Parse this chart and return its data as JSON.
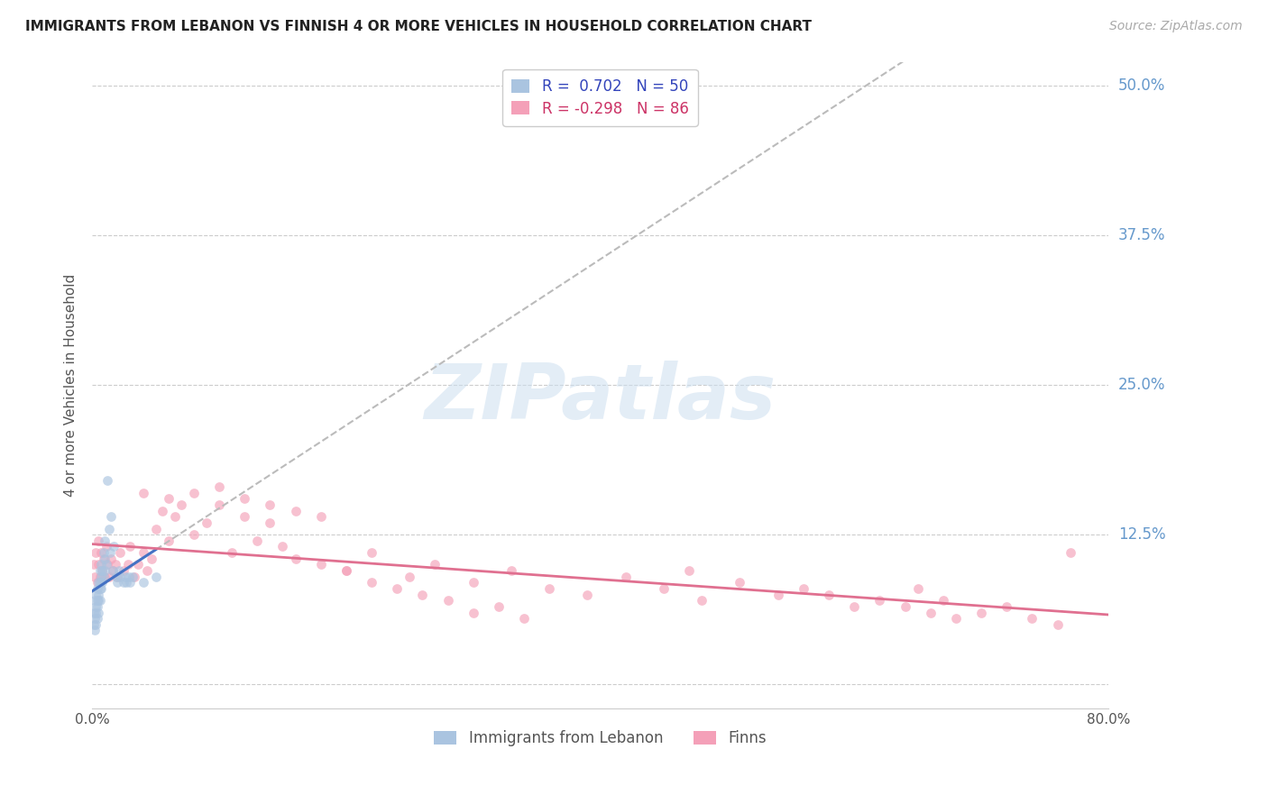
{
  "title": "IMMIGRANTS FROM LEBANON VS FINNISH 4 OR MORE VEHICLES IN HOUSEHOLD CORRELATION CHART",
  "source": "Source: ZipAtlas.com",
  "ylabel": "4 or more Vehicles in Household",
  "xlim": [
    0.0,
    0.8
  ],
  "ylim": [
    -0.02,
    0.52
  ],
  "xticks": [
    0.0,
    0.1,
    0.2,
    0.3,
    0.4,
    0.5,
    0.6,
    0.7,
    0.8
  ],
  "yticks": [
    0.0,
    0.125,
    0.25,
    0.375,
    0.5
  ],
  "watermark_text": "ZIPatlas",
  "legend_r1_text": "R =  0.702   N = 50",
  "legend_r2_text": "R = -0.298   N = 86",
  "color_lebanon": "#aac4e0",
  "color_finns": "#f4a0b8",
  "color_line_lebanon": "#4472c4",
  "color_line_finns": "#e07090",
  "color_dash": "#bbbbbb",
  "background_color": "#ffffff",
  "grid_color": "#cccccc",
  "title_color": "#222222",
  "right_axis_color": "#6699cc",
  "scatter_alpha": 0.65,
  "scatter_size": 60,
  "lebanon_x": [
    0.001,
    0.001,
    0.002,
    0.002,
    0.002,
    0.003,
    0.003,
    0.003,
    0.003,
    0.004,
    0.004,
    0.004,
    0.004,
    0.005,
    0.005,
    0.005,
    0.005,
    0.006,
    0.006,
    0.006,
    0.006,
    0.007,
    0.007,
    0.007,
    0.008,
    0.008,
    0.009,
    0.009,
    0.01,
    0.01,
    0.01,
    0.011,
    0.012,
    0.013,
    0.014,
    0.015,
    0.016,
    0.017,
    0.019,
    0.02,
    0.021,
    0.022,
    0.025,
    0.026,
    0.027,
    0.029,
    0.03,
    0.032,
    0.04,
    0.05
  ],
  "lebanon_y": [
    0.05,
    0.06,
    0.045,
    0.055,
    0.07,
    0.05,
    0.06,
    0.065,
    0.075,
    0.055,
    0.065,
    0.07,
    0.08,
    0.06,
    0.07,
    0.075,
    0.085,
    0.07,
    0.08,
    0.085,
    0.095,
    0.08,
    0.09,
    0.1,
    0.085,
    0.095,
    0.09,
    0.11,
    0.095,
    0.105,
    0.12,
    0.1,
    0.17,
    0.13,
    0.11,
    0.14,
    0.095,
    0.115,
    0.09,
    0.085,
    0.095,
    0.09,
    0.085,
    0.09,
    0.085,
    0.09,
    0.085,
    0.09,
    0.085,
    0.09
  ],
  "finns_x": [
    0.001,
    0.002,
    0.003,
    0.004,
    0.005,
    0.005,
    0.006,
    0.007,
    0.008,
    0.009,
    0.01,
    0.011,
    0.012,
    0.013,
    0.015,
    0.016,
    0.018,
    0.02,
    0.022,
    0.025,
    0.028,
    0.03,
    0.033,
    0.036,
    0.04,
    0.043,
    0.047,
    0.05,
    0.055,
    0.06,
    0.065,
    0.07,
    0.08,
    0.09,
    0.1,
    0.11,
    0.12,
    0.13,
    0.14,
    0.15,
    0.16,
    0.18,
    0.2,
    0.22,
    0.25,
    0.27,
    0.3,
    0.33,
    0.36,
    0.39,
    0.42,
    0.45,
    0.48,
    0.51,
    0.54,
    0.56,
    0.58,
    0.6,
    0.62,
    0.64,
    0.65,
    0.66,
    0.67,
    0.68,
    0.7,
    0.72,
    0.74,
    0.76,
    0.04,
    0.06,
    0.08,
    0.1,
    0.12,
    0.14,
    0.16,
    0.18,
    0.2,
    0.22,
    0.24,
    0.26,
    0.28,
    0.3,
    0.32,
    0.34,
    0.47,
    0.77
  ],
  "finns_y": [
    0.1,
    0.09,
    0.11,
    0.085,
    0.1,
    0.12,
    0.09,
    0.11,
    0.095,
    0.105,
    0.09,
    0.115,
    0.1,
    0.09,
    0.105,
    0.095,
    0.1,
    0.09,
    0.11,
    0.095,
    0.1,
    0.115,
    0.09,
    0.1,
    0.11,
    0.095,
    0.105,
    0.13,
    0.145,
    0.12,
    0.14,
    0.15,
    0.125,
    0.135,
    0.15,
    0.11,
    0.14,
    0.12,
    0.135,
    0.115,
    0.105,
    0.1,
    0.095,
    0.11,
    0.09,
    0.1,
    0.085,
    0.095,
    0.08,
    0.075,
    0.09,
    0.08,
    0.07,
    0.085,
    0.075,
    0.08,
    0.075,
    0.065,
    0.07,
    0.065,
    0.08,
    0.06,
    0.07,
    0.055,
    0.06,
    0.065,
    0.055,
    0.05,
    0.16,
    0.155,
    0.16,
    0.165,
    0.155,
    0.15,
    0.145,
    0.14,
    0.095,
    0.085,
    0.08,
    0.075,
    0.07,
    0.06,
    0.065,
    0.055,
    0.095,
    0.11
  ]
}
